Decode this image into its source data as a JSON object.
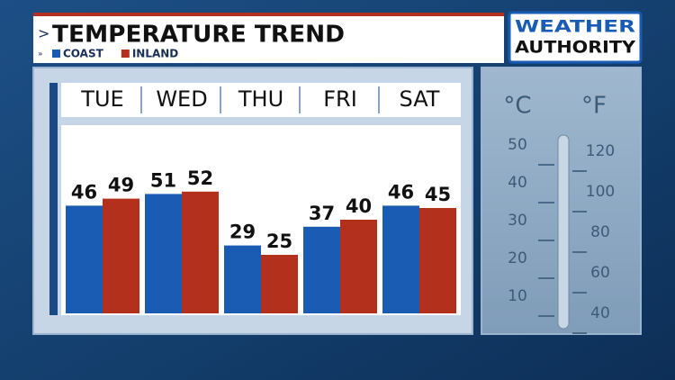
{
  "chart_data": {
    "type": "bar",
    "title": "TEMPERATURE TREND",
    "categories": [
      "TUE",
      "WED",
      "THU",
      "FRI",
      "SAT"
    ],
    "series": [
      {
        "name": "COAST",
        "color": "#1a5bb3",
        "values": [
          46,
          51,
          29,
          37,
          46
        ]
      },
      {
        "name": "INLAND",
        "color": "#b3301c",
        "values": [
          49,
          52,
          25,
          40,
          45
        ]
      }
    ]
  },
  "logo": {
    "line1": "WEATHER",
    "line2": "AUTHORITY"
  },
  "thermometer": {
    "celsius_label": "°C",
    "fahrenheit_label": "°F",
    "celsius_ticks": [
      "50",
      "40",
      "30",
      "20",
      "10"
    ],
    "fahrenheit_ticks": [
      "120",
      "100",
      "80",
      "60",
      "40"
    ]
  }
}
